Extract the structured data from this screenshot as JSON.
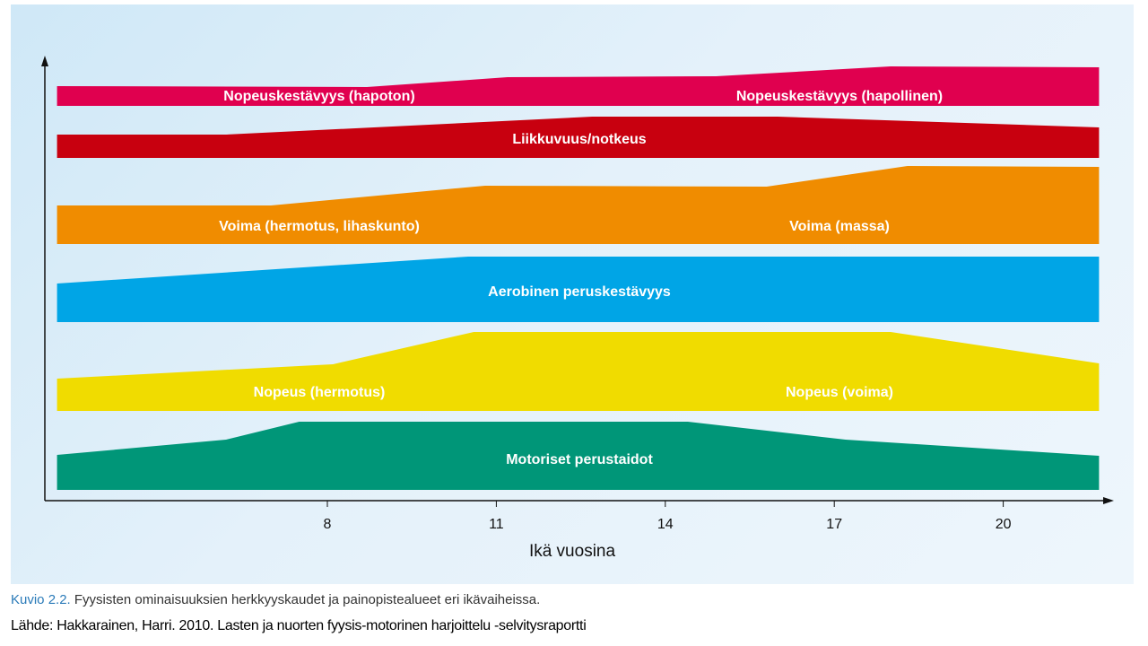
{
  "chart_data": {
    "type": "area",
    "title": "",
    "xlabel": "Ikä vuosina",
    "ylabel": "",
    "x_ticks": [
      8,
      11,
      14,
      17,
      20
    ],
    "xlim": [
      3.2,
      21.7
    ],
    "value_unit": "relative emphasis (band thickness)",
    "bands": [
      {
        "color": "#e0004f",
        "labels": [
          "Nopeuskestävyys (hapoton)",
          "Nopeuskestävyys (hapollinen)"
        ],
        "points": [
          [
            3.2,
            2.2
          ],
          [
            8.7,
            2.1
          ],
          [
            11.2,
            3.2
          ],
          [
            14.9,
            3.3
          ],
          [
            18.0,
            4.4
          ],
          [
            21.7,
            4.3
          ]
        ]
      },
      {
        "color": "#c8000f",
        "labels": [
          "Liikkuvuus/notkeus"
        ],
        "points": [
          [
            3.2,
            2.6
          ],
          [
            6.2,
            2.6
          ],
          [
            11.1,
            4.1
          ],
          [
            12.7,
            4.6
          ],
          [
            16.0,
            4.6
          ],
          [
            21.7,
            3.4
          ]
        ]
      },
      {
        "color": "#f08c00",
        "labels": [
          "Voima (hermotus, lihaskunto)",
          "Voima (massa)"
        ],
        "points": [
          [
            3.2,
            4.3
          ],
          [
            7.0,
            4.3
          ],
          [
            10.8,
            6.5
          ],
          [
            15.8,
            6.4
          ],
          [
            18.3,
            8.7
          ],
          [
            21.7,
            8.6
          ]
        ]
      },
      {
        "color": "#00a5e6",
        "labels": [
          "Aerobinen peruskestävyys"
        ],
        "points": [
          [
            3.2,
            4.3
          ],
          [
            10.5,
            7.3
          ],
          [
            21.7,
            7.3
          ]
        ]
      },
      {
        "color": "#f0dc00",
        "labels": [
          "Nopeus (hermotus)",
          "Nopeus (voima)"
        ],
        "points": [
          [
            3.2,
            3.6
          ],
          [
            8.1,
            5.2
          ],
          [
            10.6,
            8.8
          ],
          [
            18.0,
            8.8
          ],
          [
            21.7,
            5.3
          ]
        ]
      },
      {
        "color": "#009678",
        "labels": [
          "Motoriset perustaidot"
        ],
        "points": [
          [
            3.2,
            3.9
          ],
          [
            6.2,
            5.6
          ],
          [
            7.5,
            7.6
          ],
          [
            14.4,
            7.6
          ],
          [
            17.2,
            5.6
          ],
          [
            21.7,
            3.8
          ]
        ]
      }
    ]
  },
  "caption": {
    "prefix": "Kuvio 2.2.",
    "text": " Fyysisten ominaisuuksien herkkyyskaudet ja painopistealueet eri ikävaiheissa."
  },
  "source": "Lähde: Hakkarainen, Harri. 2010. Lasten ja nuorten fyysis-motorinen harjoittelu -selvitysraportti"
}
